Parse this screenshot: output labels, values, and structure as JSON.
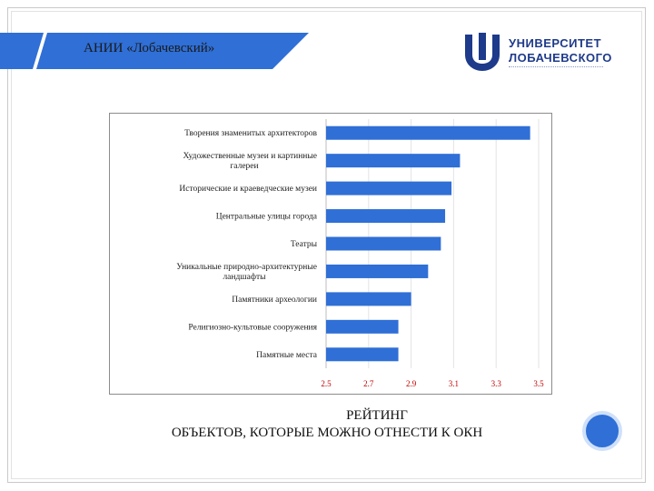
{
  "header": {
    "title": "АНИИ «Лобачевский»",
    "accent_color": "#2f6fd6"
  },
  "logo": {
    "line1": "УНИВЕРСИТЕТ",
    "line2": "ЛОБАЧЕВСКОГО",
    "icon": "university-shield-icon",
    "color": "#1e3a8a"
  },
  "caption": {
    "line1": "РЕЙТИНГ",
    "line2": "ОБЪЕКТОВ, КОТОРЫЕ МОЖНО ОТНЕСТИ К ОКН"
  },
  "chart_data": {
    "type": "bar",
    "orientation": "horizontal",
    "categories": [
      [
        "Творения знаменитых архитекторов"
      ],
      [
        "Художественные музеи и картинные",
        "галереи"
      ],
      [
        "Исторические и краеведческие музеи"
      ],
      [
        "Центральные улицы города"
      ],
      [
        "Театры"
      ],
      [
        "Уникальные природно-архитектурные",
        "ландшафты"
      ],
      [
        "Памятники археологии"
      ],
      [
        "Религиозно-культовые сооружения"
      ],
      [
        "Памятные места"
      ]
    ],
    "values": [
      3.46,
      3.13,
      3.09,
      3.06,
      3.04,
      2.98,
      2.9,
      2.84,
      2.84
    ],
    "xlim": [
      2.5,
      3.5
    ],
    "xticks": [
      "2.5",
      "2.7",
      "2.9",
      "3.1",
      "3.3",
      "3.5"
    ],
    "grid": true,
    "bar_color": "#2f6fd6",
    "tick_color": "#c00000"
  }
}
